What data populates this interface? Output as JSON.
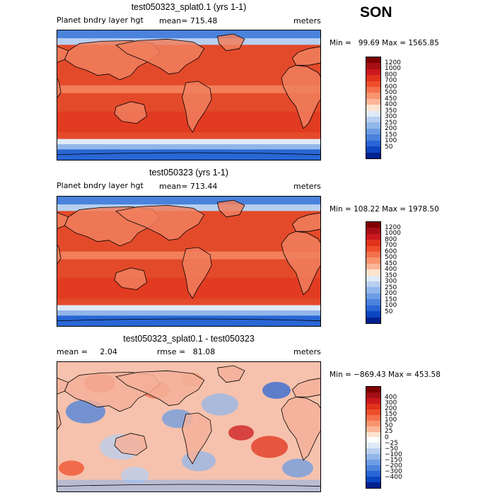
{
  "season": "SON",
  "panels": [
    {
      "title": "test050323_splat0.1 (yrs 1-1)",
      "left_label": "Planet bndry layer hgt",
      "mid_label": "mean= 715.48",
      "right_label": "meters",
      "minmax": "Min =   99.69 Max = 1565.85",
      "colors": [
        "#7f0000",
        "#a50f15",
        "#cb181d",
        "#e0321c",
        "#ef4e2b",
        "#f4714c",
        "#f8946f",
        "#fbb697",
        "#fee3cf",
        "#dfeaf7",
        "#b7cff0",
        "#91b6ea",
        "#6c9ce3",
        "#4a82dc",
        "#2966d5",
        "#0c46c2",
        "#00218e"
      ],
      "levels": [
        "1200",
        "1000",
        "800",
        "700",
        "600",
        "500",
        "450",
        "400",
        "350",
        "300",
        "250",
        "200",
        "150",
        "100",
        "50"
      ],
      "ocean": "#e34a2a",
      "land": "#f07f5e"
    },
    {
      "title": "test050323 (yrs 1-1)",
      "left_label": "Planet bndry layer hgt",
      "mid_label": "mean= 713.44",
      "right_label": "meters",
      "minmax": "Min = 108.22 Max = 1978.50",
      "colors": [
        "#7f0000",
        "#a50f15",
        "#cb181d",
        "#e0321c",
        "#ef4e2b",
        "#f4714c",
        "#f8946f",
        "#fbb697",
        "#fee3cf",
        "#dfeaf7",
        "#b7cff0",
        "#91b6ea",
        "#6c9ce3",
        "#4a82dc",
        "#2966d5",
        "#0c46c2",
        "#00218e"
      ],
      "levels": [
        "1200",
        "1000",
        "800",
        "700",
        "600",
        "500",
        "450",
        "400",
        "350",
        "300",
        "250",
        "200",
        "150",
        "100",
        "50"
      ],
      "ocean": "#e34a2a",
      "land": "#f07f5e"
    },
    {
      "title": "test050323_splat0.1 - test050323",
      "left_label": "mean =     2.04",
      "mid_label": "rmse =   81.08",
      "right_label": "meters",
      "minmax": "Min = −869.43 Max = 453.58",
      "colors": [
        "#7f0000",
        "#a50f15",
        "#cb181d",
        "#e0321c",
        "#ef4e2b",
        "#f4714c",
        "#f8946f",
        "#fbb697",
        "#fee3cf",
        "#ffffff",
        "#dfeaf7",
        "#b7cff0",
        "#91b6ea",
        "#6c9ce3",
        "#4a82dc",
        "#2966d5",
        "#0c46c2",
        "#00218e"
      ],
      "levels": [
        "400",
        "300",
        "200",
        "150",
        "100",
        "50",
        "25",
        "0",
        "−25",
        "−50",
        "−100",
        "−150",
        "−200",
        "−300",
        "−400"
      ],
      "ocean": "#f6c2ad",
      "land": "#f5b09a"
    }
  ]
}
